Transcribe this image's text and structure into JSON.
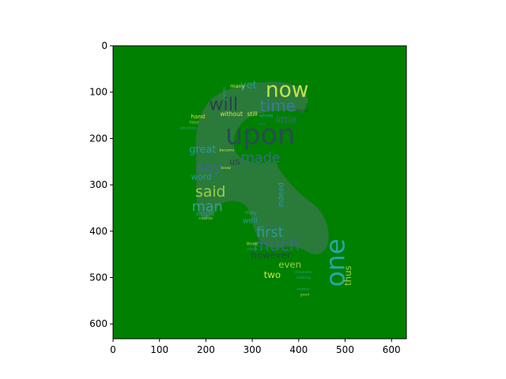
{
  "chart_data": {
    "type": "image",
    "title": "",
    "xlabel": "",
    "ylabel": "",
    "xlim": [
      0,
      632
    ],
    "ylim": [
      632,
      0
    ],
    "xticks": [
      0,
      100,
      200,
      300,
      400,
      500,
      600
    ],
    "yticks": [
      0,
      100,
      200,
      300,
      400,
      500,
      600
    ],
    "background_color": "#008000",
    "shape_color": "#2a7a3a",
    "words": [
      {
        "text": "upon",
        "x": 317,
        "y": 195,
        "size": 60,
        "color": "#2b4a55",
        "rotate": 0
      },
      {
        "text": "now",
        "x": 375,
        "y": 97,
        "size": 45,
        "color": "#bfe34a",
        "rotate": 0
      },
      {
        "text": "one",
        "x": 482,
        "y": 468,
        "size": 56,
        "color": "#2aa6a6",
        "rotate": -90
      },
      {
        "text": "will",
        "x": 238,
        "y": 128,
        "size": 38,
        "color": "#2a3f4e",
        "rotate": 0
      },
      {
        "text": "time",
        "x": 355,
        "y": 132,
        "size": 34,
        "color": "#3a7a9a",
        "rotate": 0
      },
      {
        "text": "much",
        "x": 352,
        "y": 432,
        "size": 36,
        "color": "#3a6a8a",
        "rotate": 0
      },
      {
        "text": "first",
        "x": 338,
        "y": 404,
        "size": 30,
        "color": "#2a9a9a",
        "rotate": 0
      },
      {
        "text": "say",
        "x": 207,
        "y": 263,
        "size": 32,
        "color": "#3a6a8a",
        "rotate": 0
      },
      {
        "text": "made",
        "x": 318,
        "y": 243,
        "size": 30,
        "color": "#3a6a8a",
        "rotate": 0
      },
      {
        "text": "said",
        "x": 210,
        "y": 316,
        "size": 32,
        "color": "#9ad04a",
        "rotate": 0
      },
      {
        "text": "man",
        "x": 203,
        "y": 348,
        "size": 30,
        "color": "#3aa08a",
        "rotate": 0
      },
      {
        "text": "yet",
        "x": 292,
        "y": 86,
        "size": 22,
        "color": "#2a9a9a",
        "rotate": 0
      },
      {
        "text": "great",
        "x": 193,
        "y": 225,
        "size": 22,
        "color": "#2a9a9a",
        "rotate": 0
      },
      {
        "text": "little",
        "x": 373,
        "y": 160,
        "size": 20,
        "color": "#3a6a8a",
        "rotate": 0
      },
      {
        "text": "however",
        "x": 340,
        "y": 452,
        "size": 20,
        "color": "#2a3f4e",
        "rotate": 0
      },
      {
        "text": "even",
        "x": 381,
        "y": 473,
        "size": 20,
        "color": "#9ad04a",
        "rotate": 0
      },
      {
        "text": "two",
        "x": 343,
        "y": 495,
        "size": 20,
        "color": "#d8e83a",
        "rotate": 0
      },
      {
        "text": "thus",
        "x": 507,
        "y": 496,
        "size": 20,
        "color": "#9ad04a",
        "rotate": -90
      },
      {
        "text": "indeed",
        "x": 363,
        "y": 322,
        "size": 16,
        "color": "#2a9a9a",
        "rotate": -90
      },
      {
        "text": "us",
        "x": 262,
        "y": 250,
        "size": 20,
        "color": "#2a3f4e",
        "rotate": 0
      },
      {
        "text": "word",
        "x": 190,
        "y": 284,
        "size": 18,
        "color": "#2a9a9a",
        "rotate": 0
      },
      {
        "text": "might",
        "x": 199,
        "y": 363,
        "size": 14,
        "color": "#2a9a9a",
        "rotate": 0
      },
      {
        "text": "well",
        "x": 295,
        "y": 378,
        "size": 16,
        "color": "#2a9a9a",
        "rotate": 0
      },
      {
        "text": "without",
        "x": 255,
        "y": 148,
        "size": 13,
        "color": "#d8e83a",
        "rotate": 0
      },
      {
        "text": "still",
        "x": 300,
        "y": 148,
        "size": 13,
        "color": "#d8e83a",
        "rotate": 0
      },
      {
        "text": "hand",
        "x": 183,
        "y": 153,
        "size": 12,
        "color": "#d8e83a",
        "rotate": 0
      },
      {
        "text": "many",
        "x": 268,
        "y": 87,
        "size": 11,
        "color": "#d8e83a",
        "rotate": 0
      },
      {
        "text": "must",
        "x": 408,
        "y": 140,
        "size": 11,
        "color": "#2a3f4e",
        "rotate": 0
      },
      {
        "text": "may",
        "x": 297,
        "y": 360,
        "size": 12,
        "color": "#2a9a9a",
        "rotate": 0
      },
      {
        "text": "thing",
        "x": 338,
        "y": 390,
        "size": 12,
        "color": "#3a6a8a",
        "rotate": 0
      },
      {
        "text": "three",
        "x": 300,
        "y": 428,
        "size": 9,
        "color": "#d8e83a",
        "rotate": 0
      },
      {
        "text": "course",
        "x": 200,
        "y": 372,
        "size": 9,
        "color": "#9ad04a",
        "rotate": 0
      },
      {
        "text": "became",
        "x": 245,
        "y": 225,
        "size": 8,
        "color": "#d8e83a",
        "rotate": 0
      },
      {
        "text": "know",
        "x": 243,
        "y": 263,
        "size": 8,
        "color": "#d8e83a",
        "rotate": 0
      },
      {
        "text": "whole",
        "x": 330,
        "y": 152,
        "size": 10,
        "color": "#2a9a9a",
        "rotate": 0
      },
      {
        "text": "hour",
        "x": 175,
        "y": 165,
        "size": 9,
        "color": "#9ad04a",
        "rotate": 0
      },
      {
        "text": "attention",
        "x": 162,
        "y": 177,
        "size": 8,
        "color": "#2a9a9a",
        "rotate": 0
      },
      {
        "text": "character",
        "x": 410,
        "y": 488,
        "size": 8,
        "color": "#2a9a9a",
        "rotate": 0
      },
      {
        "text": "nothing",
        "x": 410,
        "y": 500,
        "size": 8,
        "color": "#2a9a9a",
        "rotate": 0
      },
      {
        "text": "matter",
        "x": 410,
        "y": 525,
        "size": 8,
        "color": "#2a9a9a",
        "rotate": 0
      },
      {
        "text": "good",
        "x": 413,
        "y": 537,
        "size": 8,
        "color": "#9ad04a",
        "rotate": 0
      },
      {
        "text": "place",
        "x": 300,
        "y": 438,
        "size": 8,
        "color": "#2a9a9a",
        "rotate": 0
      },
      {
        "text": "wait",
        "x": 320,
        "y": 168,
        "size": 8,
        "color": "#3a6a8a",
        "rotate": 0
      },
      {
        "text": "never",
        "x": 240,
        "y": 102,
        "size": 9,
        "color": "#2a9a9a",
        "rotate": -90
      }
    ]
  }
}
